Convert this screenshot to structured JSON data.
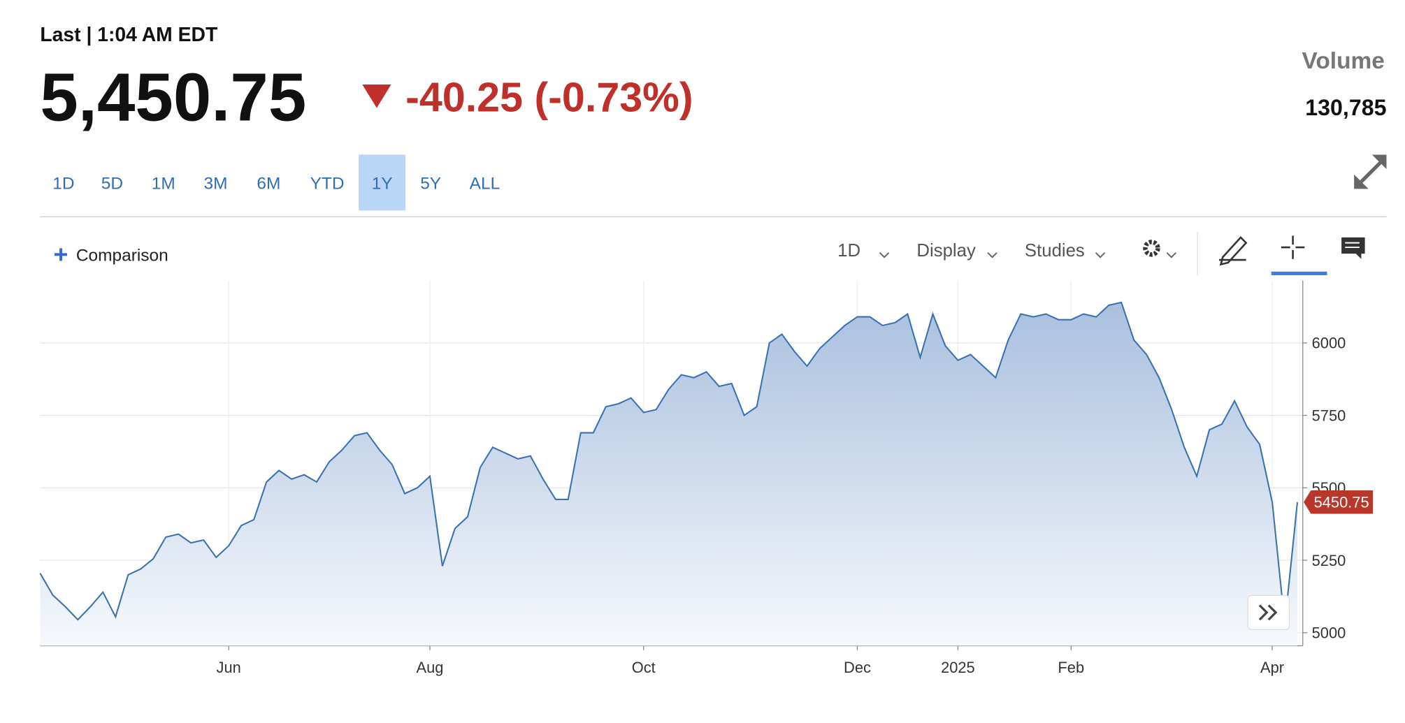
{
  "header": {
    "last": "Last | 1:04 AM EDT",
    "price": "5,450.75",
    "change": "-40.25 (-0.73%)",
    "volume_label": "Volume",
    "volume": "130,785"
  },
  "ranges": [
    "1D",
    "5D",
    "1M",
    "3M",
    "6M",
    "YTD",
    "1Y",
    "5Y",
    "ALL"
  ],
  "active_range": 6,
  "toolbar": {
    "comparison": "Comparison",
    "interval": "1D",
    "display": "Display",
    "studies": "Studies"
  },
  "chart_data": {
    "type": "line",
    "color": "#3a72b0",
    "categories": [
      null,
      null,
      null,
      null,
      null,
      null,
      null,
      null,
      null,
      null,
      null,
      null,
      null,
      null,
      null,
      "Jun",
      null,
      null,
      null,
      null,
      null,
      null,
      null,
      null,
      null,
      null,
      null,
      null,
      null,
      null,
      null,
      "Aug",
      null,
      null,
      null,
      null,
      null,
      null,
      null,
      null,
      null,
      null,
      null,
      null,
      null,
      null,
      null,
      null,
      "Oct",
      null,
      null,
      null,
      null,
      null,
      null,
      null,
      null,
      null,
      null,
      null,
      null,
      null,
      null,
      null,
      null,
      "Dec",
      null,
      null,
      null,
      null,
      null,
      null,
      null,
      "2025",
      null,
      null,
      null,
      null,
      null,
      null,
      null,
      null,
      "Feb",
      null,
      null,
      null,
      null,
      null,
      null,
      null,
      null,
      null,
      null,
      null,
      null,
      null,
      null,
      null,
      "Apr",
      null,
      null
    ],
    "values": [
      5205,
      5130,
      5090,
      5045,
      5090,
      5140,
      5055,
      5200,
      5220,
      5255,
      5330,
      5340,
      5310,
      5320,
      5260,
      5300,
      5370,
      5390,
      5520,
      5560,
      5530,
      5545,
      5520,
      5590,
      5630,
      5680,
      5690,
      5630,
      5580,
      5480,
      5500,
      5540,
      5230,
      5360,
      5400,
      5570,
      5640,
      5620,
      5600,
      5610,
      5530,
      5460,
      5460,
      5690,
      5690,
      5780,
      5790,
      5810,
      5760,
      5770,
      5840,
      5890,
      5880,
      5900,
      5850,
      5860,
      5750,
      5780,
      6000,
      6030,
      5970,
      5920,
      5980,
      6020,
      6060,
      6090,
      6090,
      6060,
      6070,
      6100,
      5950,
      6100,
      5990,
      5940,
      5960,
      5920,
      5880,
      6010,
      6100,
      6090,
      6100,
      6080,
      6080,
      6100,
      6090,
      6130,
      6140,
      6010,
      5960,
      5880,
      5770,
      5640,
      5540,
      5700,
      5720,
      5800,
      5710,
      5650,
      5450,
      5030,
      5450.75
    ],
    "value_labels": [
      null,
      null,
      null,
      null,
      null,
      null,
      null,
      null,
      null,
      null,
      null,
      null,
      null,
      null,
      null,
      null,
      null,
      null,
      null,
      null,
      null,
      null,
      null,
      null,
      null,
      null,
      null,
      null,
      null,
      null,
      null,
      null,
      null,
      null,
      null,
      null,
      null,
      null,
      null,
      null,
      null,
      null,
      null,
      null,
      null,
      null,
      null,
      null,
      null,
      null,
      null,
      null,
      null,
      null,
      null,
      null,
      null,
      null,
      null,
      null,
      null,
      null,
      null,
      null,
      null,
      null,
      null,
      null,
      null,
      null,
      null,
      null,
      null,
      null,
      null,
      null,
      null,
      null,
      null,
      null,
      null,
      null,
      null,
      null,
      null,
      null,
      null,
      null,
      null,
      null,
      null,
      null,
      null,
      null,
      null,
      null,
      null,
      null,
      null,
      null,
      "5450.75"
    ],
    "ylim": [
      4955,
      6215
    ],
    "yticks": [
      5000,
      5250,
      5500,
      5750,
      6000
    ],
    "grid": true
  }
}
